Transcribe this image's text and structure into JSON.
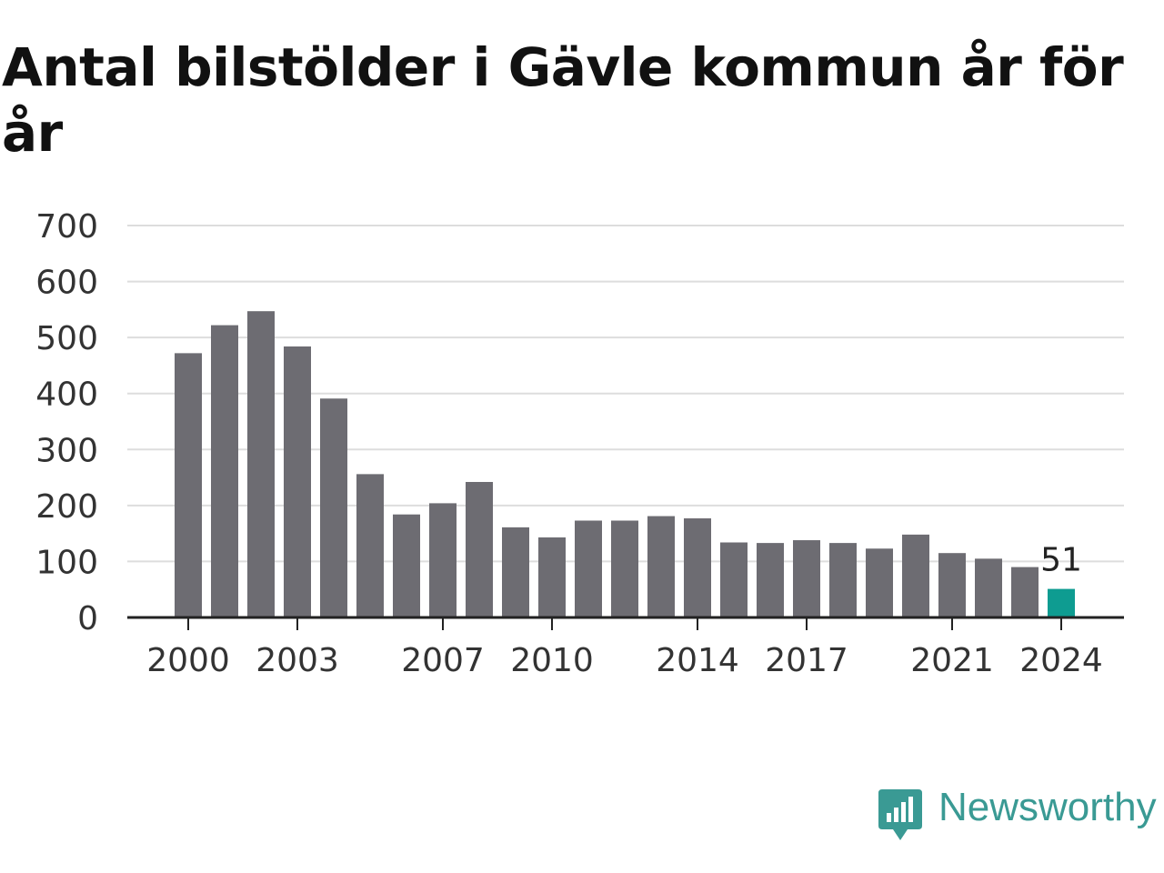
{
  "title": "Antal bilstölder i Gävle kommun år för år",
  "brand": {
    "name": "Newsworthy",
    "icon": "newsworthy-logo-icon",
    "color": "#3a9a94"
  },
  "chart_data": {
    "type": "bar",
    "title": "Antal bilstölder i Gävle kommun år för år",
    "xlabel": "",
    "ylabel": "",
    "categories": [
      "2000",
      "2001",
      "2002",
      "2003",
      "2004",
      "2005",
      "2006",
      "2007",
      "2008",
      "2009",
      "2010",
      "2011",
      "2012",
      "2013",
      "2014",
      "2015",
      "2016",
      "2017",
      "2018",
      "2019",
      "2020",
      "2021",
      "2022",
      "2023",
      "2024"
    ],
    "values": [
      472,
      522,
      547,
      484,
      391,
      256,
      184,
      204,
      242,
      161,
      143,
      173,
      173,
      181,
      177,
      134,
      133,
      138,
      133,
      123,
      148,
      115,
      105,
      90,
      51
    ],
    "ylim": [
      0,
      700
    ],
    "yticks": [
      "0",
      "100",
      "200",
      "300",
      "400",
      "500",
      "600",
      "700"
    ],
    "xtick_labels": [
      "2000",
      "2003",
      "2007",
      "2010",
      "2014",
      "2017",
      "2021",
      "2024"
    ],
    "highlight": {
      "category": "2024",
      "label": "51"
    },
    "colors": {
      "bar": "#6d6c72",
      "highlight": "#0e9c91",
      "grid": "#dddddd",
      "axis": "#222222"
    },
    "grid": true,
    "legend": "none"
  }
}
